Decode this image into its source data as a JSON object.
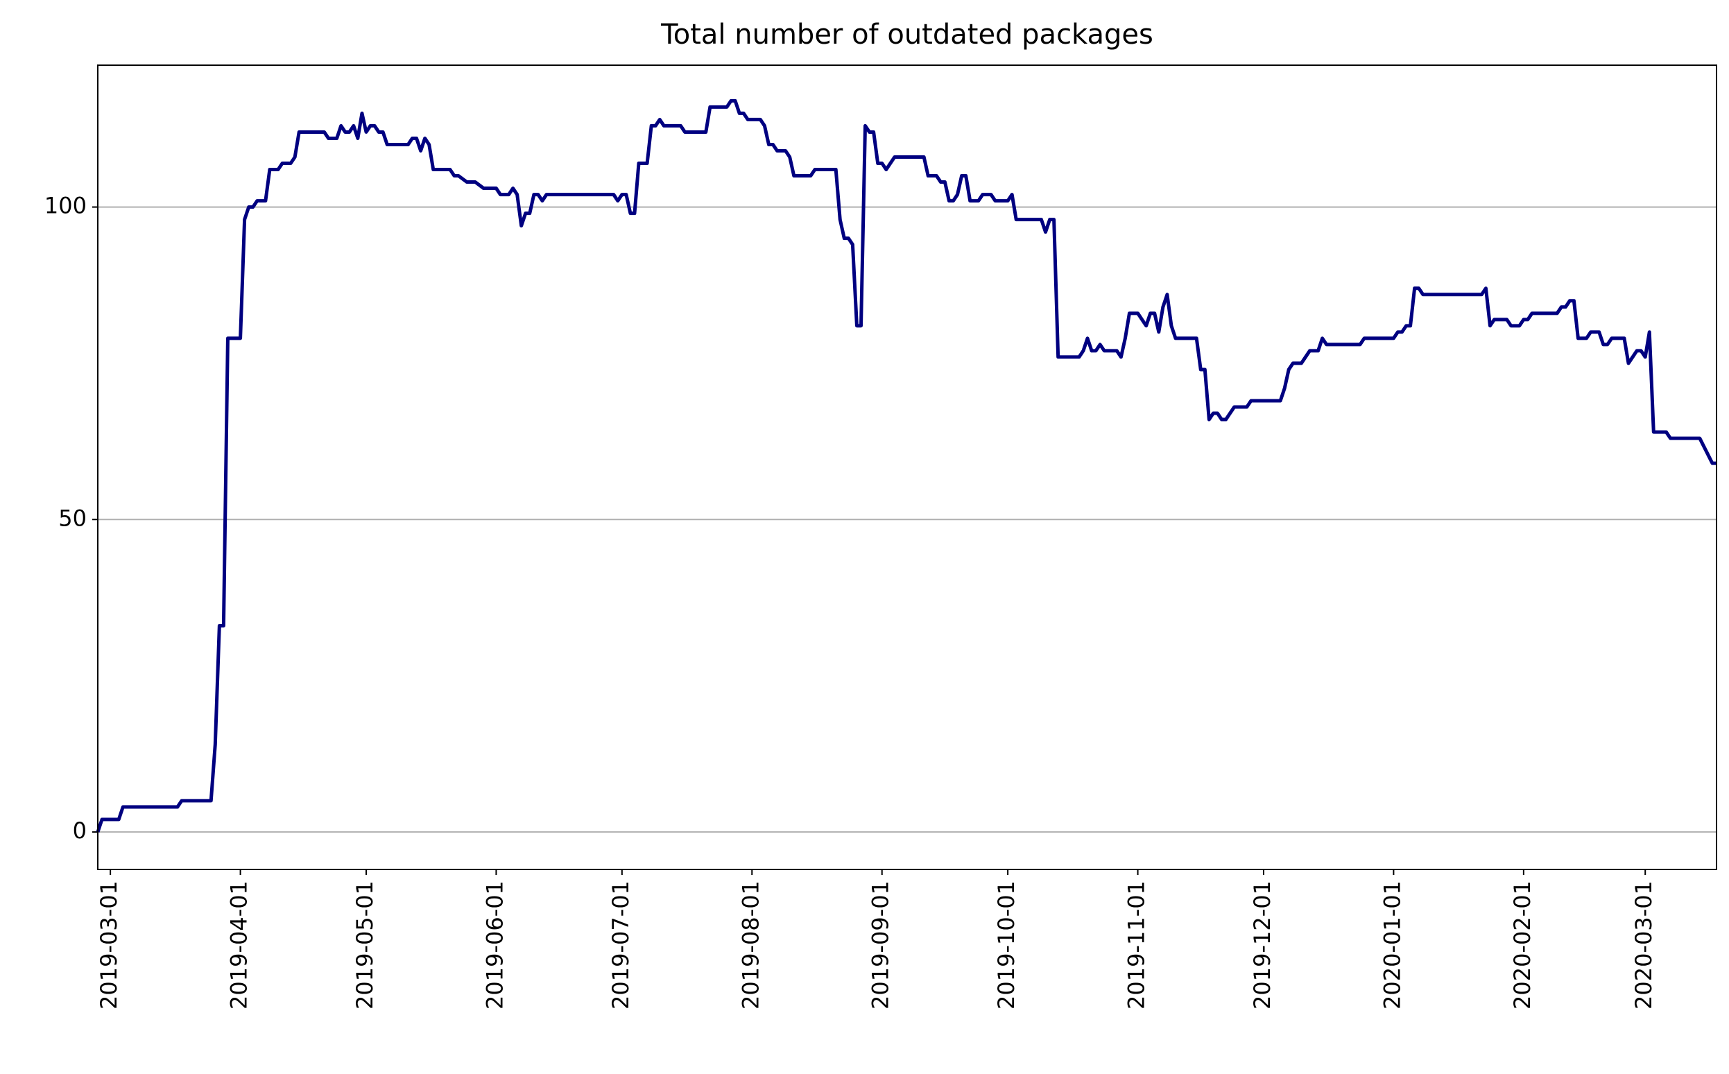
{
  "chart_data": {
    "type": "line",
    "title": "Total number of outdated packages",
    "color": "#000080",
    "grid": true,
    "xlim": [
      "2019-02-26",
      "2020-03-18"
    ],
    "xticks": [
      "2019-03-01",
      "2019-04-01",
      "2019-05-01",
      "2019-06-01",
      "2019-07-01",
      "2019-08-01",
      "2019-09-01",
      "2019-10-01",
      "2019-11-01",
      "2019-12-01",
      "2020-01-01",
      "2020-02-01",
      "2020-03-01"
    ],
    "ylim": [
      -6,
      122.7
    ],
    "yticks": [
      0,
      50,
      100
    ],
    "x": [
      "2019-02-26",
      "2019-02-27",
      "2019-03-03",
      "2019-03-04",
      "2019-03-17",
      "2019-03-18",
      "2019-03-25",
      "2019-03-26",
      "2019-03-27",
      "2019-03-28",
      "2019-03-29",
      "2019-04-01",
      "2019-04-02",
      "2019-04-03",
      "2019-04-04",
      "2019-04-05",
      "2019-04-07",
      "2019-04-08",
      "2019-04-10",
      "2019-04-11",
      "2019-04-13",
      "2019-04-14",
      "2019-04-15",
      "2019-04-21",
      "2019-04-22",
      "2019-04-24",
      "2019-04-25",
      "2019-04-26",
      "2019-04-27",
      "2019-04-28",
      "2019-04-29",
      "2019-04-30",
      "2019-05-01",
      "2019-05-02",
      "2019-05-03",
      "2019-05-04",
      "2019-05-05",
      "2019-05-06",
      "2019-05-11",
      "2019-05-12",
      "2019-05-13",
      "2019-05-14",
      "2019-05-15",
      "2019-05-16",
      "2019-05-17",
      "2019-05-21",
      "2019-05-22",
      "2019-05-23",
      "2019-05-25",
      "2019-05-27",
      "2019-05-29",
      "2019-06-01",
      "2019-06-02",
      "2019-06-04",
      "2019-06-05",
      "2019-06-06",
      "2019-06-07",
      "2019-06-08",
      "2019-06-09",
      "2019-06-10",
      "2019-06-11",
      "2019-06-12",
      "2019-06-13",
      "2019-06-29",
      "2019-06-30",
      "2019-07-01",
      "2019-07-02",
      "2019-07-03",
      "2019-07-04",
      "2019-07-05",
      "2019-07-07",
      "2019-07-08",
      "2019-07-09",
      "2019-07-10",
      "2019-07-11",
      "2019-07-15",
      "2019-07-16",
      "2019-07-21",
      "2019-07-22",
      "2019-07-26",
      "2019-07-27",
      "2019-07-28",
      "2019-07-29",
      "2019-07-30",
      "2019-07-31",
      "2019-08-03",
      "2019-08-04",
      "2019-08-05",
      "2019-08-06",
      "2019-08-07",
      "2019-08-09",
      "2019-08-10",
      "2019-08-11",
      "2019-08-15",
      "2019-08-16",
      "2019-08-21",
      "2019-08-22",
      "2019-08-23",
      "2019-08-24",
      "2019-08-25",
      "2019-08-26",
      "2019-08-27",
      "2019-08-28",
      "2019-08-29",
      "2019-08-30",
      "2019-08-31",
      "2019-09-01",
      "2019-09-02",
      "2019-09-03",
      "2019-09-04",
      "2019-09-11",
      "2019-09-12",
      "2019-09-14",
      "2019-09-15",
      "2019-09-16",
      "2019-09-17",
      "2019-09-18",
      "2019-09-19",
      "2019-09-20",
      "2019-09-21",
      "2019-09-22",
      "2019-09-24",
      "2019-09-25",
      "2019-09-27",
      "2019-09-28",
      "2019-09-30",
      "2019-10-01",
      "2019-10-02",
      "2019-10-03",
      "2019-10-09",
      "2019-10-10",
      "2019-10-11",
      "2019-10-12",
      "2019-10-13",
      "2019-10-18",
      "2019-10-19",
      "2019-10-20",
      "2019-10-21",
      "2019-10-22",
      "2019-10-23",
      "2019-10-24",
      "2019-10-27",
      "2019-10-28",
      "2019-10-29",
      "2019-10-30",
      "2019-11-01",
      "2019-11-02",
      "2019-11-03",
      "2019-11-04",
      "2019-11-05",
      "2019-11-06",
      "2019-11-07",
      "2019-11-08",
      "2019-11-09",
      "2019-11-10",
      "2019-11-15",
      "2019-11-16",
      "2019-11-17",
      "2019-11-18",
      "2019-11-19",
      "2019-11-20",
      "2019-11-21",
      "2019-11-22",
      "2019-11-23",
      "2019-11-24",
      "2019-11-27",
      "2019-11-28",
      "2019-12-01",
      "2019-12-05",
      "2019-12-06",
      "2019-12-07",
      "2019-12-08",
      "2019-12-10",
      "2019-12-11",
      "2019-12-12",
      "2019-12-14",
      "2019-12-15",
      "2019-12-16",
      "2019-12-24",
      "2019-12-25",
      "2020-01-01",
      "2020-01-02",
      "2020-01-03",
      "2020-01-04",
      "2020-01-05",
      "2020-01-06",
      "2020-01-07",
      "2020-01-08",
      "2020-01-22",
      "2020-01-23",
      "2020-01-24",
      "2020-01-25",
      "2020-01-28",
      "2020-01-29",
      "2020-01-31",
      "2020-02-01",
      "2020-02-02",
      "2020-02-03",
      "2020-02-09",
      "2020-02-10",
      "2020-02-11",
      "2020-02-12",
      "2020-02-13",
      "2020-02-14",
      "2020-02-15",
      "2020-02-16",
      "2020-02-17",
      "2020-02-19",
      "2020-02-20",
      "2020-02-21",
      "2020-02-22",
      "2020-02-25",
      "2020-02-26",
      "2020-02-27",
      "2020-02-28",
      "2020-02-29",
      "2020-03-01",
      "2020-03-02",
      "2020-03-03",
      "2020-03-06",
      "2020-03-07",
      "2020-03-14",
      "2020-03-17",
      "2020-03-18"
    ],
    "values": [
      0,
      2,
      2,
      4,
      4,
      5,
      5,
      14,
      33,
      33,
      79,
      79,
      98,
      100,
      100,
      101,
      101,
      106,
      106,
      107,
      107,
      108,
      112,
      112,
      111,
      111,
      113,
      112,
      112,
      113,
      111,
      115,
      112,
      113,
      113,
      112,
      112,
      110,
      110,
      111,
      111,
      109,
      111,
      110,
      106,
      106,
      105,
      105,
      104,
      104,
      103,
      103,
      102,
      102,
      103,
      102,
      97,
      99,
      99,
      102,
      102,
      101,
      102,
      102,
      101,
      102,
      102,
      99,
      99,
      107,
      107,
      113,
      113,
      114,
      113,
      113,
      112,
      112,
      116,
      116,
      117,
      117,
      115,
      115,
      114,
      114,
      113,
      110,
      110,
      109,
      109,
      108,
      105,
      105,
      106,
      106,
      98,
      95,
      95,
      94,
      81,
      81,
      113,
      112,
      112,
      107,
      107,
      106,
      107,
      108,
      108,
      105,
      105,
      104,
      104,
      101,
      101,
      102,
      105,
      105,
      101,
      101,
      102,
      102,
      101,
      101,
      101,
      102,
      98,
      98,
      96,
      98,
      98,
      76,
      76,
      77,
      79,
      77,
      77,
      78,
      77,
      77,
      76,
      79,
      83,
      83,
      82,
      81,
      83,
      83,
      80,
      84,
      86,
      81,
      79,
      79,
      74,
      74,
      66,
      67,
      67,
      66,
      66,
      67,
      68,
      68,
      69,
      69,
      69,
      71,
      74,
      75,
      75,
      76,
      77,
      77,
      79,
      78,
      78,
      79,
      79,
      80,
      80,
      81,
      81,
      87,
      87,
      86,
      86,
      87,
      81,
      82,
      82,
      81,
      81,
      82,
      82,
      83,
      83,
      84,
      84,
      85,
      85,
      79,
      79,
      79,
      80,
      80,
      78,
      78,
      79,
      79,
      75,
      76,
      77,
      77,
      76,
      80,
      64,
      64,
      63,
      63,
      59,
      59
    ]
  }
}
